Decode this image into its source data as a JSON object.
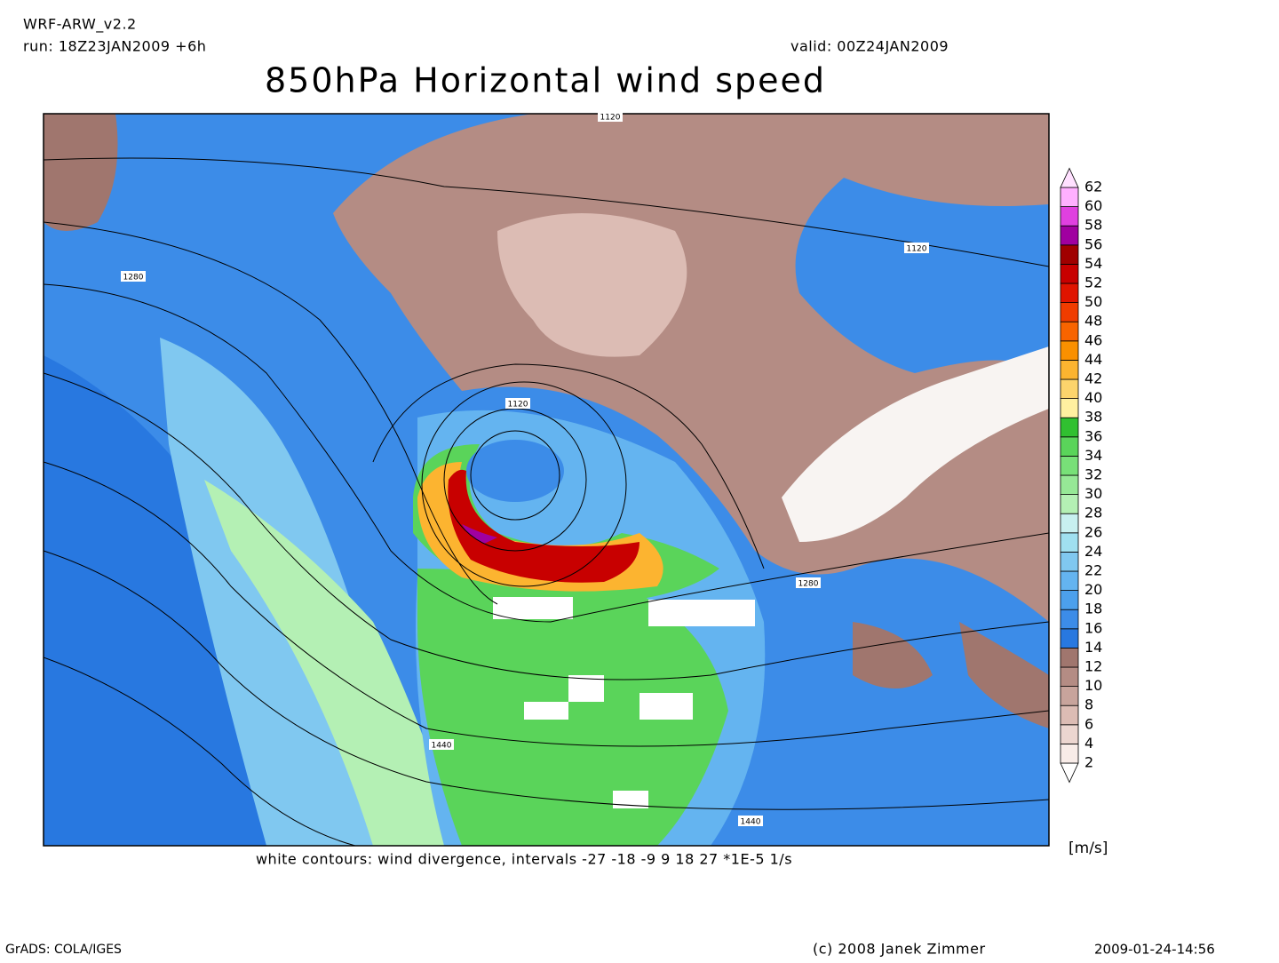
{
  "header": {
    "model": "WRF-ARW_v2.2",
    "run": "run: 18Z23JAN2009 +6h",
    "valid": "valid: 00Z24JAN2009",
    "title": "850hPa Horizontal wind speed"
  },
  "map": {
    "contour_labels": [
      "1120",
      "1120",
      "1120",
      "1280",
      "1280",
      "1440",
      "1440"
    ]
  },
  "colorbar": {
    "levels": [
      2,
      4,
      6,
      8,
      10,
      12,
      14,
      16,
      18,
      20,
      22,
      24,
      26,
      28,
      30,
      32,
      34,
      36,
      38,
      40,
      42,
      44,
      46,
      48,
      50,
      52,
      54,
      56,
      58,
      60,
      62
    ],
    "colors": [
      "#ffffff",
      "#f8ece8",
      "#ecd6d0",
      "#dcbcb4",
      "#c8a49c",
      "#b48c84",
      "#a0766e",
      "#2878e0",
      "#3c8ce8",
      "#4ca0ec",
      "#64b4f0",
      "#80c8f0",
      "#a0e0f0",
      "#c8f0f0",
      "#b4f0b4",
      "#96e896",
      "#78e078",
      "#5ad45a",
      "#30c030",
      "#fff0a0",
      "#fcd46c",
      "#fcb430",
      "#fa9000",
      "#f86400",
      "#f03c00",
      "#e01400",
      "#c80000",
      "#a00000",
      "#a000a0",
      "#e040e0",
      "#ffb0ff",
      "#ffe0ff"
    ],
    "units": "[m/s]"
  },
  "caption": "white contours: wind divergence, intervals -27 -18 -9 9 18 27 *1E-5 1/s",
  "footer": {
    "software": "GrADS: COLA/IGES",
    "copyright": "(c) 2008 Janek Zimmer",
    "timestamp": "2009-01-24-14:56"
  }
}
